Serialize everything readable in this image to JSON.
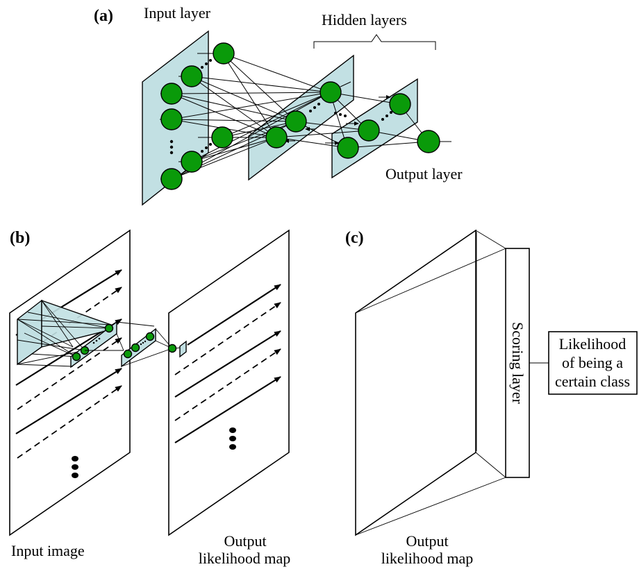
{
  "panel_a": {
    "tag": "(a)",
    "input_layer_label": "Input layer",
    "hidden_layers_label": "Hidden layers",
    "output_layer_label": "Output layer"
  },
  "panel_b": {
    "tag": "(b)",
    "input_image_label": "Input image",
    "output_map_label_line1": "Output",
    "output_map_label_line2": "likelihood map"
  },
  "panel_c": {
    "tag": "(c)",
    "scoring_layer_label": "Scoring layer",
    "likelihood_box_line1": "Likelihood",
    "likelihood_box_line2": "of being a",
    "likelihood_box_line3": "certain class",
    "output_map_label_line1": "Output",
    "output_map_label_line2": "likelihood map"
  },
  "colors": {
    "plane_fill": "#c2e0e3",
    "node_fill": "#0a9a0a",
    "line": "#000000"
  }
}
